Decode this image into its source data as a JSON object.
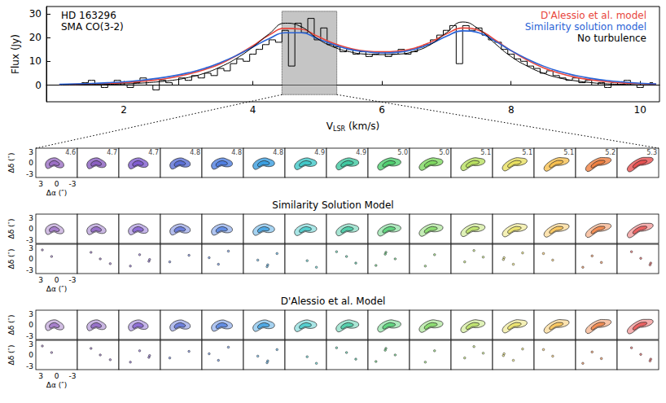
{
  "chart_data": {
    "type": "line",
    "y_label": "Flux (Jy)",
    "x_label": {
      "text": "V",
      "subscript": "LSR",
      "suffix": "(km/s)"
    },
    "annotations": [
      "HD 163296",
      "SMA CO(3-2)"
    ],
    "legend": "upper right",
    "grid": false,
    "xlim": [
      0.8,
      10.3
    ],
    "xticks": [
      2,
      4,
      6,
      8,
      10
    ],
    "ylim": [
      -7,
      33
    ],
    "yticks": [
      0,
      10,
      20,
      30
    ],
    "highlight": {
      "x": [
        4.45,
        5.3
      ],
      "y": [
        -4,
        31
      ]
    },
    "observed": {
      "line_style": "step",
      "color": "#000000",
      "x": [
        1.3,
        1.4,
        1.5,
        1.6,
        1.7,
        1.8,
        1.9,
        2.0,
        2.1,
        2.2,
        2.3,
        2.4,
        2.5,
        2.6,
        2.7,
        2.8,
        2.9,
        3.0,
        3.1,
        3.2,
        3.3,
        3.4,
        3.5,
        3.6,
        3.7,
        3.8,
        3.9,
        4.0,
        4.1,
        4.2,
        4.3,
        4.4,
        4.5,
        4.6,
        4.7,
        4.8,
        4.9,
        5.0,
        5.1,
        5.2,
        5.3,
        5.4,
        5.5,
        5.6,
        5.7,
        5.8,
        5.9,
        6.0,
        6.1,
        6.2,
        6.3,
        6.4,
        6.5,
        6.6,
        6.7,
        6.8,
        6.9,
        7.0,
        7.1,
        7.2,
        7.3,
        7.4,
        7.5,
        7.6,
        7.7,
        7.8,
        7.9,
        8.0,
        8.1,
        8.2,
        8.3,
        8.4,
        8.5,
        8.6,
        8.7,
        8.8,
        8.9,
        9.0,
        9.1,
        9.2,
        9.3,
        9.4,
        9.5,
        9.6,
        9.7,
        9.8,
        9.9,
        10.0,
        10.1,
        10.2
      ],
      "values": [
        0,
        1,
        2,
        0,
        -1,
        1,
        2,
        0,
        -1,
        1,
        3,
        0,
        -2,
        2,
        1,
        0,
        3,
        2,
        4,
        3,
        5,
        4,
        7,
        6,
        9,
        11,
        10,
        13,
        15,
        17,
        19,
        18,
        23,
        8,
        26,
        22,
        28,
        19,
        24,
        17,
        16,
        14,
        15,
        13,
        14,
        12,
        13,
        14,
        12,
        13,
        15,
        13,
        14,
        16,
        17,
        19,
        21,
        23,
        25,
        9,
        25,
        23,
        24,
        21,
        19,
        18,
        15,
        13,
        11,
        10,
        8,
        7,
        5,
        6,
        4,
        3,
        2,
        3,
        1,
        2,
        0,
        1,
        -1,
        1,
        0,
        2,
        0,
        -1,
        0,
        1
      ]
    },
    "x": [
      1.0,
      1.25,
      1.5,
      1.75,
      2.0,
      2.25,
      2.5,
      2.75,
      3.0,
      3.25,
      3.5,
      3.75,
      4.0,
      4.25,
      4.5,
      4.75,
      5.0,
      5.25,
      5.5,
      5.75,
      6.0,
      6.25,
      6.5,
      6.75,
      7.0,
      7.25,
      7.5,
      7.75,
      8.0,
      8.25,
      8.5,
      8.75,
      9.0,
      9.25,
      9.5,
      9.75,
      10.0,
      10.25
    ],
    "series": [
      {
        "name": "D'Alessio et al. model",
        "color": "#e8453c",
        "values": [
          0.2,
          0.3,
          0.5,
          0.7,
          1.0,
          1.5,
          2.2,
          3.2,
          4.6,
          6.5,
          9.0,
          12.5,
          16.5,
          21,
          23.8,
          23.5,
          20.5,
          17.5,
          15.5,
          14.3,
          14,
          14.3,
          15.5,
          18,
          21.5,
          24,
          23,
          19,
          14.5,
          10.5,
          7.3,
          5,
          3.3,
          2.2,
          1.4,
          0.9,
          0.6,
          0.4
        ]
      },
      {
        "name": "Similarity solution model",
        "color": "#2a63d6",
        "values": [
          0.3,
          0.5,
          0.7,
          1.0,
          1.4,
          2.0,
          2.8,
          3.8,
          5.2,
          7.0,
          9.5,
          12.5,
          16,
          19.5,
          22,
          22,
          19.5,
          17,
          15,
          14,
          13.5,
          13.8,
          15,
          17.3,
          20.5,
          22.8,
          22,
          18.5,
          14.5,
          11,
          8,
          5.7,
          4,
          2.8,
          1.9,
          1.3,
          0.8,
          0.5
        ]
      },
      {
        "name": "No turbulence",
        "color": "#000000",
        "values": [
          0,
          0.1,
          0.2,
          0.3,
          0.5,
          0.8,
          1.3,
          2.0,
          3.2,
          5,
          7.7,
          11.3,
          16,
          21.5,
          26,
          24.5,
          19.5,
          16,
          14,
          13,
          12.8,
          13,
          14.2,
          17,
          22,
          26.5,
          23.5,
          17.5,
          12,
          8,
          5,
          3,
          1.8,
          1,
          0.5,
          0.3,
          0.1,
          0
        ]
      }
    ]
  },
  "channel_maps": {
    "velocities": [
      4.6,
      4.7,
      4.7,
      4.8,
      4.8,
      4.8,
      4.9,
      4.9,
      {
        "value": 5,
        "label": "5.0"
      },
      {
        "value": 5,
        "label": "5.0"
      },
      5.1,
      5.1,
      5.1,
      5.2,
      5.3
    ],
    "colors": [
      "#9b6fc4",
      "#8a5fc0",
      "#7f5ccf",
      "#5a6fd6",
      "#4f7ee0",
      "#3a9ee0",
      "#40c8c8",
      "#3fc8a0",
      "#4fd070",
      "#7ed860",
      "#b8e060",
      "#e8e060",
      "#f8c050",
      "#f08040",
      "#e85050"
    ],
    "offset_ticks": [
      3,
      0,
      -3
    ],
    "dec_label": "Δδ (″)",
    "ra_label": "Δα (″)",
    "models": [
      {
        "title": "Similarity Solution Model"
      },
      {
        "title": "D'Alessio et al. Model"
      }
    ]
  }
}
